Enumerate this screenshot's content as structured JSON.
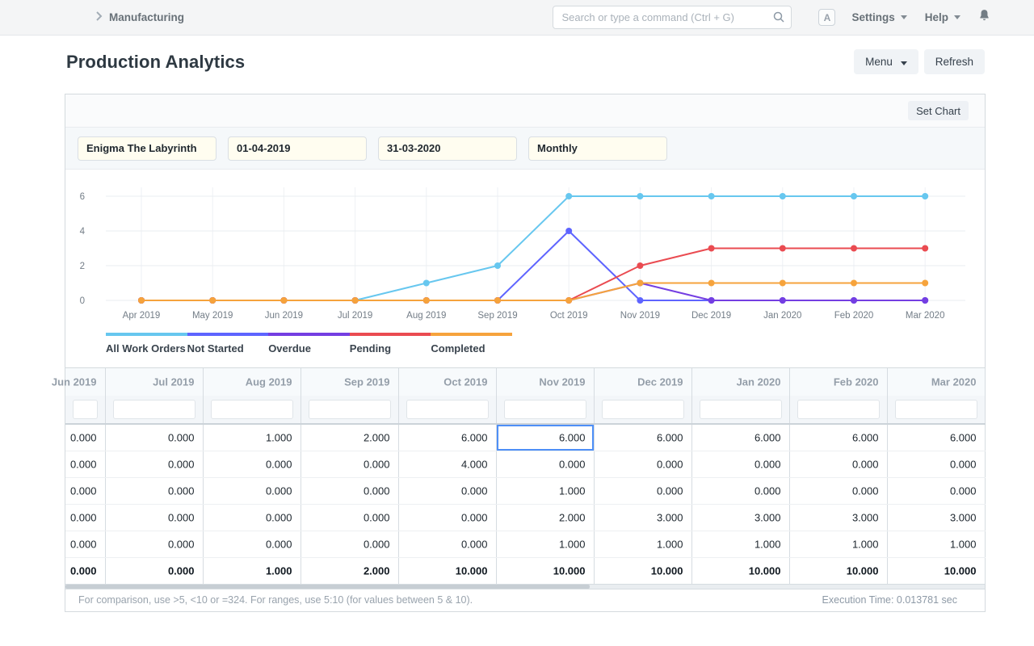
{
  "navbar": {
    "breadcrumb": "Manufacturing",
    "search_placeholder": "Search or type a command (Ctrl + G)",
    "avatar_letter": "A",
    "settings_label": "Settings",
    "help_label": "Help"
  },
  "page": {
    "title": "Production Analytics",
    "menu_label": "Menu",
    "refresh_label": "Refresh",
    "set_chart_label": "Set Chart"
  },
  "filters": {
    "production_item": "Enigma The Labyrinth",
    "from_date": "01-04-2019",
    "to_date": "31-03-2020",
    "range": "Monthly"
  },
  "chart_data": {
    "type": "line",
    "x": [
      "Apr 2019",
      "May 2019",
      "Jun 2019",
      "Jul 2019",
      "Aug 2019",
      "Sep 2019",
      "Oct 2019",
      "Nov 2019",
      "Dec 2019",
      "Jan 2020",
      "Feb 2020",
      "Mar 2020"
    ],
    "series": [
      {
        "name": "All Work Orders",
        "color": "#67c7ef",
        "values": [
          0,
          0,
          0,
          0,
          1,
          2,
          6,
          6,
          6,
          6,
          6,
          6
        ]
      },
      {
        "name": "Not Started",
        "color": "#5e64ff",
        "values": [
          0,
          0,
          0,
          0,
          0,
          0,
          4,
          0,
          0,
          0,
          0,
          0
        ]
      },
      {
        "name": "Overdue",
        "color": "#743ee2",
        "values": [
          0,
          0,
          0,
          0,
          0,
          0,
          0,
          1,
          0,
          0,
          0,
          0
        ]
      },
      {
        "name": "Pending",
        "color": "#ea4b51",
        "values": [
          0,
          0,
          0,
          0,
          0,
          0,
          0,
          2,
          3,
          3,
          3,
          3
        ]
      },
      {
        "name": "Completed",
        "color": "#f6a33c",
        "values": [
          0,
          0,
          0,
          0,
          0,
          0,
          0,
          1,
          1,
          1,
          1,
          1
        ]
      }
    ],
    "title": "",
    "xlabel": "",
    "ylabel": "",
    "ylim": [
      0,
      6
    ],
    "yticks": [
      0,
      2,
      4,
      6
    ],
    "grid": true,
    "legend_position": "bottom",
    "grid_color": "#e9edf0",
    "axis_text_color": "#737d87"
  },
  "table": {
    "columns": [
      "Jun 2019",
      "Jul 2019",
      "Aug 2019",
      "Sep 2019",
      "Oct 2019",
      "Nov 2019",
      "Dec 2019",
      "Jan 2020",
      "Feb 2020",
      "Mar 2020"
    ],
    "rows": [
      [
        "0.000",
        "0.000",
        "1.000",
        "2.000",
        "6.000",
        "6.000",
        "6.000",
        "6.000",
        "6.000",
        "6.000"
      ],
      [
        "0.000",
        "0.000",
        "0.000",
        "0.000",
        "4.000",
        "0.000",
        "0.000",
        "0.000",
        "0.000",
        "0.000"
      ],
      [
        "0.000",
        "0.000",
        "0.000",
        "0.000",
        "0.000",
        "1.000",
        "0.000",
        "0.000",
        "0.000",
        "0.000"
      ],
      [
        "0.000",
        "0.000",
        "0.000",
        "0.000",
        "0.000",
        "2.000",
        "3.000",
        "3.000",
        "3.000",
        "3.000"
      ],
      [
        "0.000",
        "0.000",
        "0.000",
        "0.000",
        "0.000",
        "1.000",
        "1.000",
        "1.000",
        "1.000",
        "1.000"
      ]
    ],
    "total_row": [
      "0.000",
      "0.000",
      "1.000",
      "2.000",
      "10.000",
      "10.000",
      "10.000",
      "10.000",
      "10.000",
      "10.000"
    ],
    "selected_cell": {
      "row": 0,
      "col": 5
    },
    "selection_color": "#4e8ff7"
  },
  "footer": {
    "hint": "For comparison, use >5, <10 or =324. For ranges, use 5:10 (for values between 5 & 10).",
    "execution_time": "Execution Time: 0.013781 sec"
  }
}
